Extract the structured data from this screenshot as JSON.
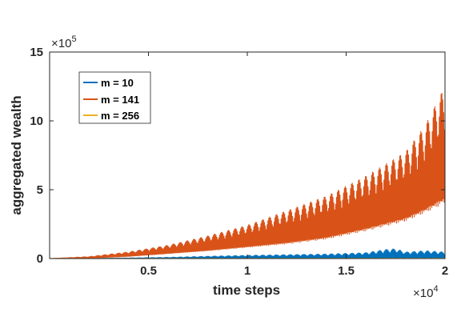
{
  "chart_data": {
    "type": "line",
    "xlabel": "time steps",
    "ylabel": "aggregated wealth",
    "x_exponent_label": "×10",
    "x_exponent_power": "4",
    "y_exponent_label": "×10",
    "y_exponent_power": "5",
    "xlim": [
      0,
      20000
    ],
    "ylim": [
      0,
      1500000
    ],
    "x_ticks": [
      5000,
      10000,
      15000,
      20000
    ],
    "x_tick_labels": [
      "0.5",
      "1",
      "1.5",
      "2"
    ],
    "y_ticks": [
      0,
      500000,
      1000000,
      1500000
    ],
    "y_tick_labels": [
      "0",
      "5",
      "10",
      "15"
    ],
    "grid": false,
    "legend_position": "top-left",
    "series": [
      {
        "name": "m = 10",
        "color": "#0072BD",
        "x": [
          0,
          2000,
          4000,
          6000,
          8000,
          10000,
          12000,
          14000,
          16000,
          17000,
          17500,
          18000,
          19000,
          20000
        ],
        "low": [
          0,
          0,
          0,
          0,
          0,
          0,
          0,
          0,
          0,
          0,
          0,
          0,
          0,
          0
        ],
        "high": [
          0,
          2000,
          5000,
          10000,
          18000,
          25000,
          30000,
          35000,
          45000,
          70000,
          75000,
          50000,
          60000,
          50000
        ]
      },
      {
        "name": "m = 141",
        "color": "#D95319",
        "x": [
          0,
          2000,
          4000,
          6000,
          8000,
          10000,
          12000,
          14000,
          16000,
          18000,
          19000,
          20000
        ],
        "low": [
          0,
          3000,
          15000,
          35000,
          55000,
          80000,
          105000,
          140000,
          200000,
          270000,
          330000,
          400000
        ],
        "high": [
          0,
          15000,
          50000,
          100000,
          170000,
          250000,
          360000,
          470000,
          620000,
          800000,
          1000000,
          1300000
        ]
      },
      {
        "name": "m = 256",
        "color": "#EDB120",
        "x": [
          0,
          20000
        ],
        "low": [
          0,
          0
        ],
        "high": [
          1000,
          3000
        ]
      }
    ]
  }
}
